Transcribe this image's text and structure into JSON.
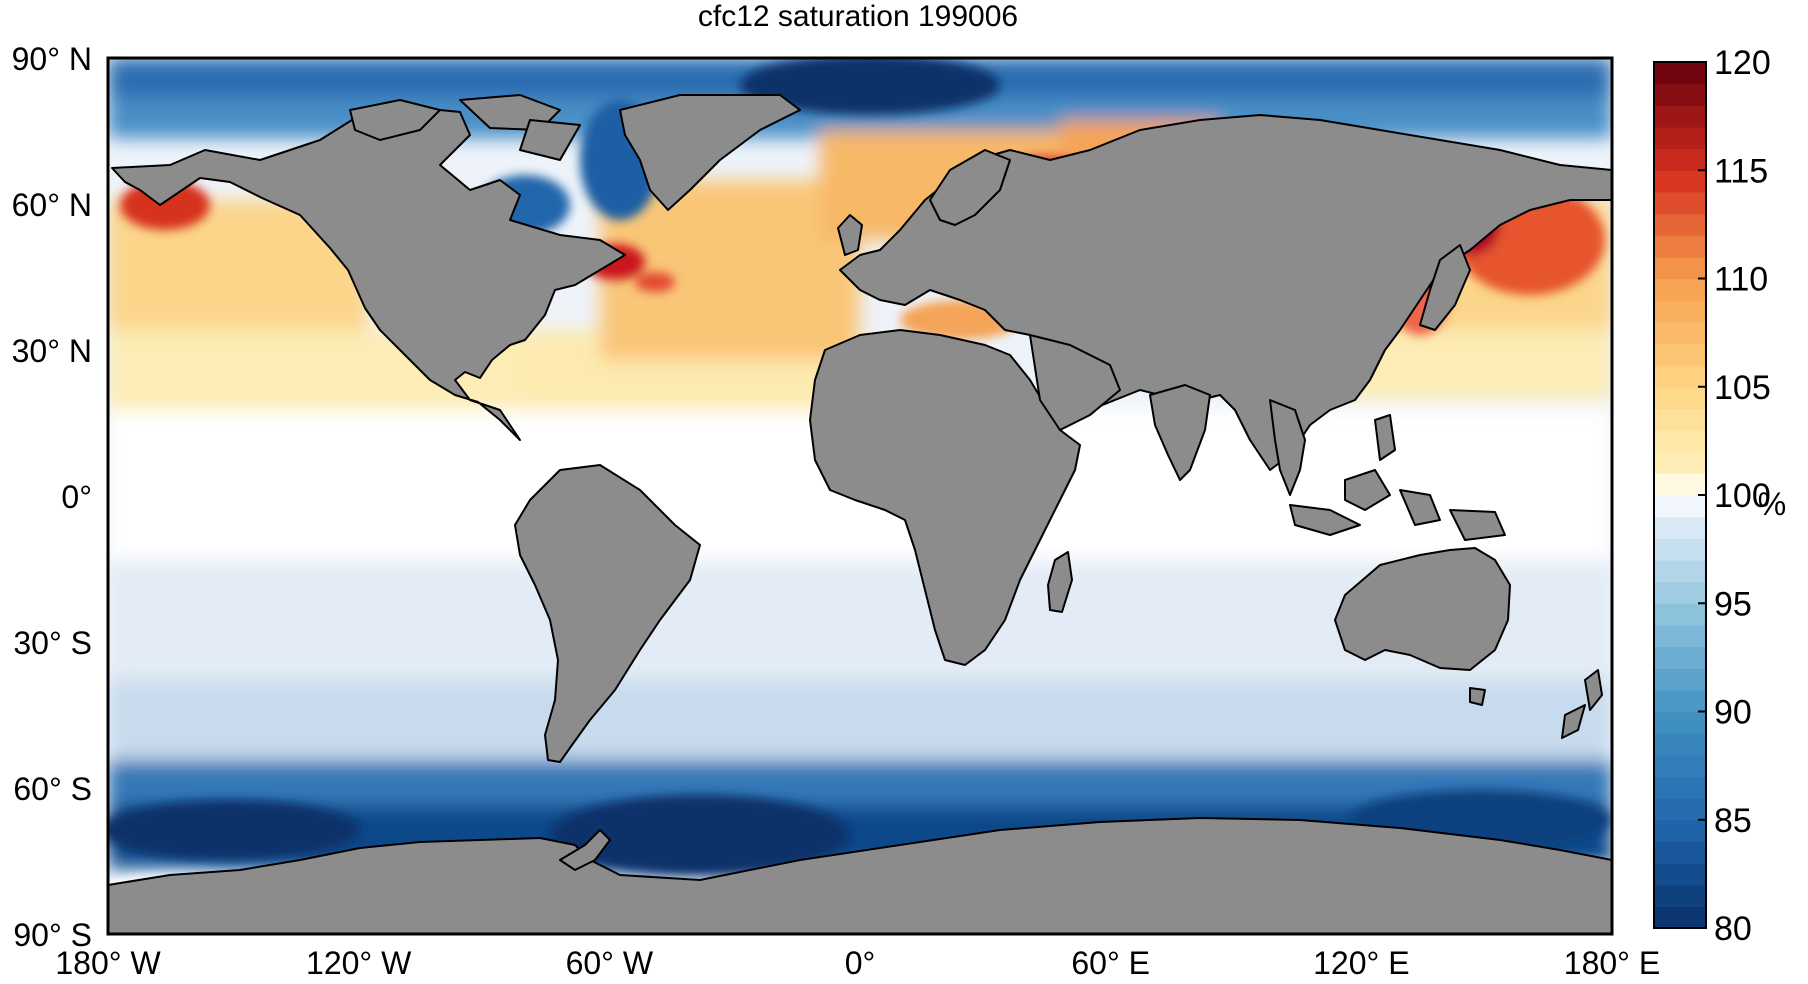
{
  "map": {
    "title": "cfc12 saturation 199006",
    "lat_ticks": [
      "90° N",
      "60° N",
      "30° N",
      "0°",
      "30° S",
      "60° S",
      "90° S"
    ],
    "lon_ticks": [
      "180° W",
      "120° W",
      "60° W",
      "0°",
      "60° E",
      "120° E",
      "180° E"
    ],
    "colorbar": {
      "ticks": [
        "120",
        "115",
        "110",
        "105",
        "100",
        "95",
        "90",
        "85",
        "80"
      ],
      "unit": "%",
      "min": 80,
      "max": 120,
      "steps": 40,
      "colormap": "blue-white-red"
    },
    "colors": {
      "land": "#8c8c8c",
      "coastline": "#000000",
      "saturated_white": "#ffffff",
      "deep_blue": "#08306b",
      "deep_red": "#67000d",
      "frame": "#000000"
    },
    "projection": "equirectangular",
    "lon_range": [
      -180,
      180
    ],
    "lat_range": [
      -90,
      90
    ]
  }
}
